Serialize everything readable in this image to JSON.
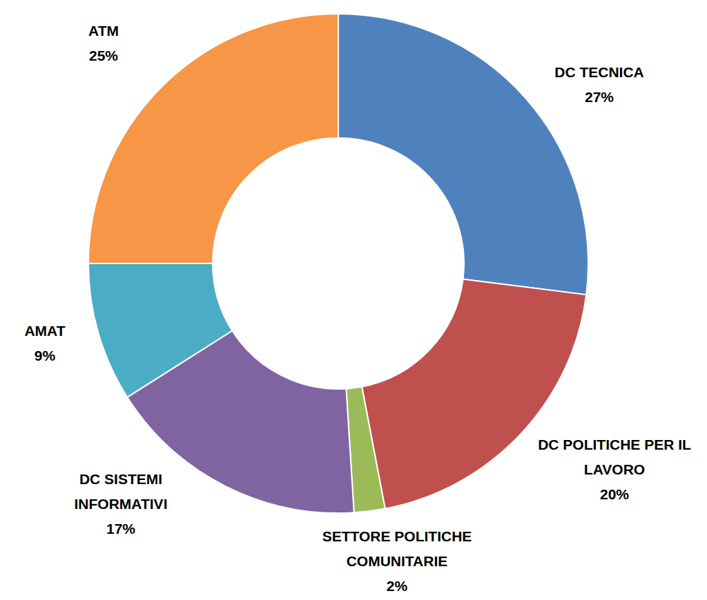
{
  "chart_data": {
    "type": "pie",
    "categories": [
      "DC TECNICA",
      "DC POLITICHE PER IL LAVORO",
      "SETTORE POLITICHE COMUNITARIE",
      "DC SISTEMI INFORMATIVI",
      "AMAT",
      "ATM"
    ],
    "values": [
      27,
      20,
      2,
      17,
      9,
      25
    ],
    "value_labels": [
      "27%",
      "20%",
      "2%",
      "17%",
      "9%",
      "25%"
    ],
    "colors": [
      "#4f81bd",
      "#c0504d",
      "#9bbb59",
      "#8064a2",
      "#4bacc6",
      "#f79646"
    ],
    "data_labels": true
  }
}
